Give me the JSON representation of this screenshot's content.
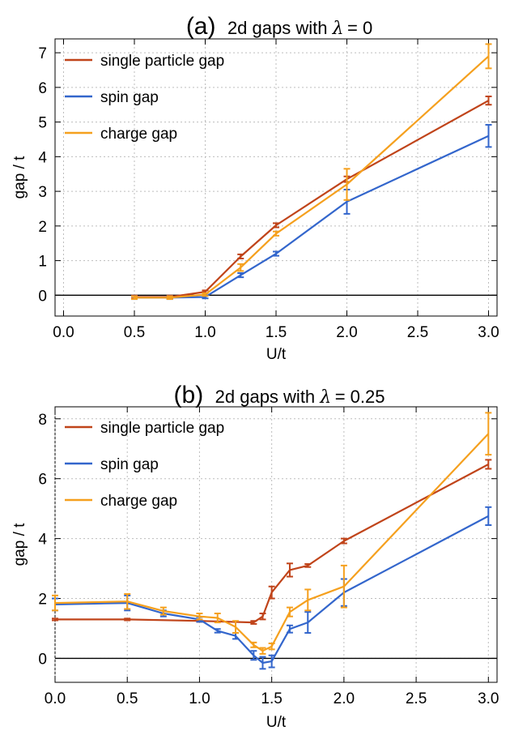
{
  "chart_data": [
    {
      "type": "line",
      "title": {
        "prefix": "(a)",
        "text": "2d gaps with ",
        "symbol": "λ",
        "suffix": " = 0"
      },
      "xlabel": "U/t",
      "ylabel": "gap / t",
      "xlim": [
        -0.06,
        3.06
      ],
      "ylim": [
        -0.6,
        7.4
      ],
      "xticks": [
        "0.0",
        "0.5",
        "1.0",
        "1.5",
        "2.0",
        "2.5",
        "3.0"
      ],
      "yticks": [
        "0",
        "1",
        "2",
        "3",
        "4",
        "5",
        "6",
        "7"
      ],
      "grid": true,
      "legend_position": "top-left",
      "series": [
        {
          "name": "single particle gap",
          "color": "#c0441a",
          "points": [
            {
              "x": 0.5,
              "y": -0.05,
              "err": 0.04
            },
            {
              "x": 0.75,
              "y": -0.05,
              "err": 0.04
            },
            {
              "x": 1.0,
              "y": 0.1,
              "err": 0.04
            },
            {
              "x": 1.25,
              "y": 1.12,
              "err": 0.06
            },
            {
              "x": 1.5,
              "y": 2.02,
              "err": 0.06
            },
            {
              "x": 2.0,
              "y": 3.35,
              "err": 0.08
            },
            {
              "x": 3.0,
              "y": 5.62,
              "err": 0.12
            }
          ]
        },
        {
          "name": "spin gap",
          "color": "#3366cc",
          "points": [
            {
              "x": 0.5,
              "y": -0.07,
              "err": 0.04
            },
            {
              "x": 0.75,
              "y": -0.07,
              "err": 0.04
            },
            {
              "x": 1.0,
              "y": -0.05,
              "err": 0.04
            },
            {
              "x": 1.25,
              "y": 0.58,
              "err": 0.06
            },
            {
              "x": 1.5,
              "y": 1.2,
              "err": 0.06
            },
            {
              "x": 2.0,
              "y": 2.7,
              "err": 0.35
            },
            {
              "x": 3.0,
              "y": 4.6,
              "err": 0.32
            }
          ]
        },
        {
          "name": "charge gap",
          "color": "#f5a01e",
          "points": [
            {
              "x": 0.5,
              "y": -0.07,
              "err": 0.04
            },
            {
              "x": 0.75,
              "y": -0.07,
              "err": 0.04
            },
            {
              "x": 1.0,
              "y": 0.02,
              "err": 0.04
            },
            {
              "x": 1.25,
              "y": 0.8,
              "err": 0.1
            },
            {
              "x": 1.5,
              "y": 1.78,
              "err": 0.06
            },
            {
              "x": 2.0,
              "y": 3.2,
              "err": 0.45
            },
            {
              "x": 3.0,
              "y": 6.9,
              "err": 0.35
            }
          ]
        }
      ]
    },
    {
      "type": "line",
      "title": {
        "prefix": "(b)",
        "text": "2d gaps with ",
        "symbol": "λ",
        "suffix": " = 0.25"
      },
      "xlabel": "U/t",
      "ylabel": "gap / t",
      "xlim": [
        0.0,
        3.06
      ],
      "ylim": [
        -0.8,
        8.4
      ],
      "xticks": [
        "0.0",
        "0.5",
        "1.0",
        "1.5",
        "2.0",
        "2.5",
        "3.0"
      ],
      "yticks": [
        "0",
        "2",
        "4",
        "6",
        "8"
      ],
      "grid": true,
      "legend_position": "top-left",
      "series": [
        {
          "name": "single particle gap",
          "color": "#c0441a",
          "points": [
            {
              "x": 0.0,
              "y": 1.3,
              "err": 0.03
            },
            {
              "x": 0.5,
              "y": 1.3,
              "err": 0.03
            },
            {
              "x": 1.0,
              "y": 1.25,
              "err": 0.03
            },
            {
              "x": 1.375,
              "y": 1.2,
              "err": 0.05
            },
            {
              "x": 1.4375,
              "y": 1.4,
              "err": 0.1
            },
            {
              "x": 1.5,
              "y": 2.2,
              "err": 0.2
            },
            {
              "x": 1.625,
              "y": 2.95,
              "err": 0.22
            },
            {
              "x": 1.75,
              "y": 3.1,
              "err": 0.05
            },
            {
              "x": 2.0,
              "y": 3.92,
              "err": 0.08
            },
            {
              "x": 3.0,
              "y": 6.48,
              "err": 0.15
            }
          ]
        },
        {
          "name": "spin gap",
          "color": "#3366cc",
          "points": [
            {
              "x": 0.0,
              "y": 1.8,
              "err": 0.2
            },
            {
              "x": 0.5,
              "y": 1.85,
              "err": 0.25
            },
            {
              "x": 0.75,
              "y": 1.5,
              "err": 0.1
            },
            {
              "x": 1.0,
              "y": 1.3,
              "err": 0.08
            },
            {
              "x": 1.125,
              "y": 0.92,
              "err": 0.06
            },
            {
              "x": 1.25,
              "y": 0.75,
              "err": 0.1
            },
            {
              "x": 1.375,
              "y": 0.1,
              "err": 0.15
            },
            {
              "x": 1.4375,
              "y": -0.15,
              "err": 0.2
            },
            {
              "x": 1.5,
              "y": -0.1,
              "err": 0.2
            },
            {
              "x": 1.625,
              "y": 0.98,
              "err": 0.12
            },
            {
              "x": 1.75,
              "y": 1.2,
              "err": 0.35
            },
            {
              "x": 2.0,
              "y": 2.2,
              "err": 0.45
            },
            {
              "x": 3.0,
              "y": 4.75,
              "err": 0.3
            }
          ]
        },
        {
          "name": "charge gap",
          "color": "#f5a01e",
          "points": [
            {
              "x": 0.0,
              "y": 1.85,
              "err": 0.25
            },
            {
              "x": 0.5,
              "y": 1.9,
              "err": 0.25
            },
            {
              "x": 0.75,
              "y": 1.58,
              "err": 0.12
            },
            {
              "x": 1.0,
              "y": 1.4,
              "err": 0.1
            },
            {
              "x": 1.125,
              "y": 1.35,
              "err": 0.15
            },
            {
              "x": 1.25,
              "y": 1.05,
              "err": 0.2
            },
            {
              "x": 1.375,
              "y": 0.45,
              "err": 0.08
            },
            {
              "x": 1.4375,
              "y": 0.25,
              "err": 0.1
            },
            {
              "x": 1.5,
              "y": 0.4,
              "err": 0.1
            },
            {
              "x": 1.625,
              "y": 1.55,
              "err": 0.15
            },
            {
              "x": 1.75,
              "y": 1.95,
              "err": 0.35
            },
            {
              "x": 2.0,
              "y": 2.4,
              "err": 0.7
            },
            {
              "x": 3.0,
              "y": 7.5,
              "err": 0.7
            }
          ]
        }
      ]
    }
  ]
}
